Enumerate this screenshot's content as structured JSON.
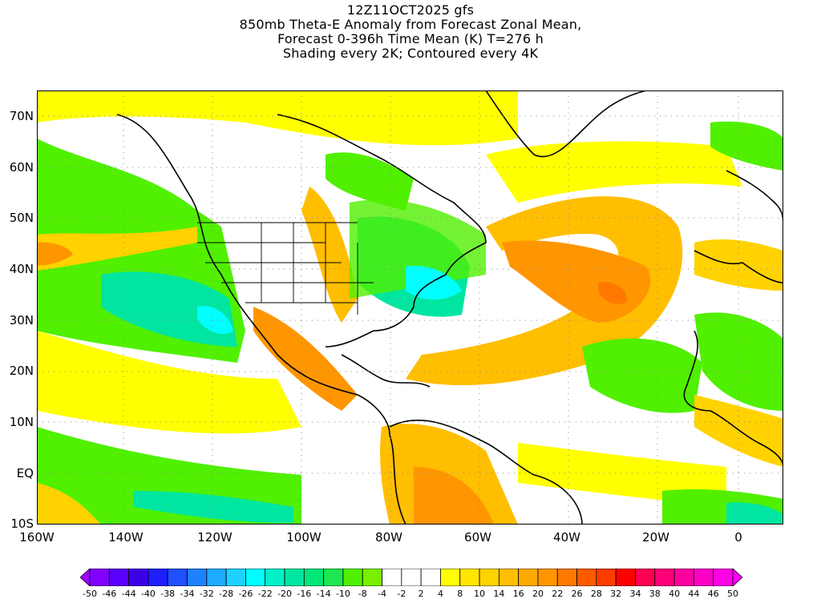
{
  "title_lines": [
    "12Z11OCT2025 gfs",
    "850mb Theta-E Anomaly from Forecast Zonal Mean,",
    "Forecast 0-396h Time Mean (K) T=276 h",
    "Shading every 2K; Contoured every 4K"
  ],
  "lat_labels": [
    "70N",
    "60N",
    "50N",
    "40N",
    "30N",
    "20N",
    "10N",
    "EQ",
    "10S"
  ],
  "lon_labels": [
    "160W",
    "140W",
    "120W",
    "100W",
    "80W",
    "60W",
    "40W",
    "20W",
    "0"
  ],
  "colorbar": {
    "labels": [
      "-50",
      "-46",
      "-44",
      "-40",
      "-38",
      "-34",
      "-32",
      "-28",
      "-26",
      "-22",
      "-20",
      "-16",
      "-14",
      "-10",
      "-8",
      "-4",
      "-2",
      "2",
      "4",
      "8",
      "10",
      "14",
      "16",
      "20",
      "22",
      "26",
      "28",
      "32",
      "34",
      "38",
      "40",
      "44",
      "46",
      "50"
    ],
    "colors": [
      "#a000ff",
      "#8200ff",
      "#5a00ff",
      "#3c00e6",
      "#1e1eff",
      "#1e50ff",
      "#1e82ff",
      "#1eaaff",
      "#1ed2ff",
      "#00ffff",
      "#00f0c8",
      "#00e6a0",
      "#00e678",
      "#1ee650",
      "#50f000",
      "#78f000",
      "#ffffff",
      "#ffffff",
      "#ffffff",
      "#ffff00",
      "#ffe600",
      "#ffd200",
      "#ffbe00",
      "#ffaa00",
      "#ff9600",
      "#ff7800",
      "#ff5a00",
      "#ff3c00",
      "#ff0000",
      "#ff0050",
      "#ff0078",
      "#ff00a0",
      "#ff00c8",
      "#ff00e6",
      "#ff00ff"
    ]
  }
}
